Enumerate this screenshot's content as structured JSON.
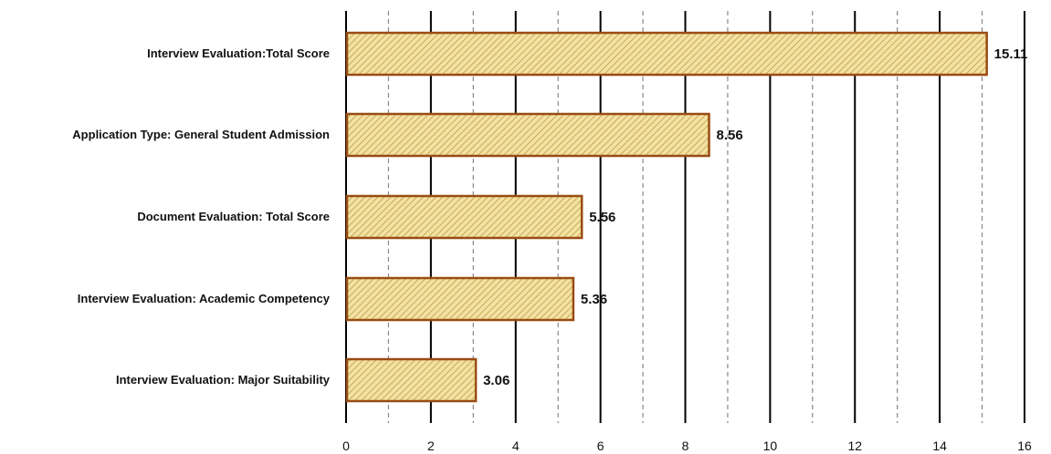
{
  "chart_data": {
    "type": "bar",
    "orientation": "horizontal",
    "categories": [
      "Interview Evaluation:Total Score",
      "Application Type: General Student Admission",
      "Document Evaluation: Total Score",
      "Interview Evaluation: Academic Competency",
      "Interview Evaluation: Major Suitability"
    ],
    "values": [
      15.11,
      8.56,
      5.56,
      5.36,
      3.06
    ],
    "value_labels": [
      "15.11",
      "8.56",
      "5.56",
      "5.36",
      "3.06"
    ],
    "xlim": [
      0,
      16
    ],
    "x_ticks": [
      0,
      2,
      4,
      6,
      8,
      10,
      12,
      14,
      16
    ],
    "x_tick_labels": [
      "0",
      "2",
      "4",
      "6",
      "8",
      "10",
      "12",
      "14",
      "16"
    ],
    "grid": {
      "major": true,
      "minor_dashed": true
    },
    "legend": "none",
    "title": "",
    "xlabel": "",
    "ylabel": "",
    "colors": {
      "bar_fill": "#f3e2a3",
      "bar_hatch": "#c8aa58",
      "bar_border": "#9a4c12",
      "gridline": "#000000",
      "minor_gridline": "#888888"
    }
  }
}
